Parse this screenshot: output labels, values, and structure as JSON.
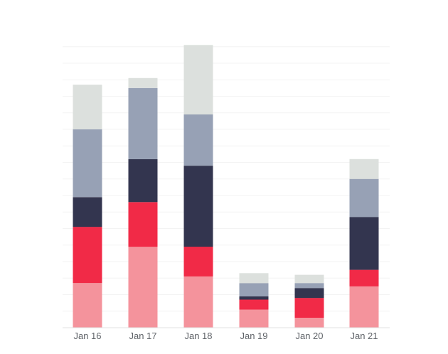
{
  "chart_data": {
    "type": "bar",
    "stacked": true,
    "categories": [
      "Jan 16",
      "Jan 17",
      "Jan 18",
      "Jan 19",
      "Jan 20",
      "Jan 21"
    ],
    "series": [
      {
        "values": [
          27,
          49,
          31,
          11,
          6,
          25
        ],
        "color": "#f4939c"
      },
      {
        "values": [
          34,
          27,
          18,
          6,
          12,
          10
        ],
        "color": "#f12a47"
      },
      {
        "values": [
          18,
          26,
          49,
          2,
          6,
          32
        ],
        "color": "#33354f"
      },
      {
        "values": [
          41,
          43,
          31,
          8,
          3,
          23
        ],
        "color": "#97a1b5"
      },
      {
        "values": [
          27,
          6,
          42,
          6,
          5,
          12
        ],
        "color": "#dce0dd"
      }
    ],
    "ylim": [
      0,
      172
    ],
    "grid": true,
    "legend": "none"
  }
}
